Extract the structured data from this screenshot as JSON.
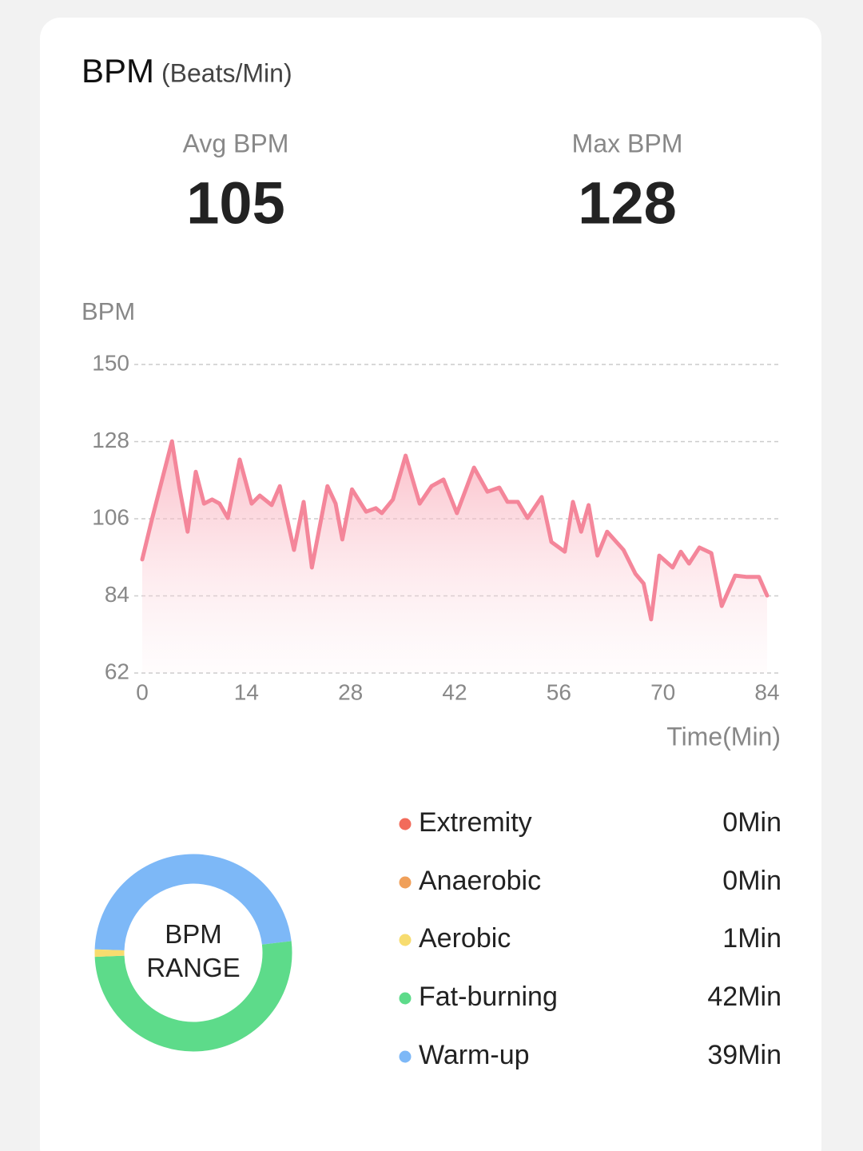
{
  "header": {
    "title": "BPM",
    "subtitle": "(Beats/Min)"
  },
  "stats": [
    {
      "label": "Avg BPM",
      "value": 105
    },
    {
      "label": "Max BPM",
      "value": 128
    }
  ],
  "chart_data": [
    {
      "type": "line",
      "y_label": "BPM",
      "x_label": "Time(Min)",
      "color": "#f4869a",
      "grid": true,
      "x": [
        0,
        1.3,
        2.4,
        4.0,
        5.0,
        6.1,
        7.2,
        8.3,
        9.4,
        10.4,
        11.5,
        13.1,
        14.7,
        15.8,
        17.4,
        18.5,
        20.4,
        21.7,
        22.8,
        24.9,
        26.0,
        26.9,
        28.2,
        30.1,
        31.4,
        32.2,
        33.7,
        35.4,
        37.3,
        38.9,
        40.5,
        42.3,
        44.6,
        46.4,
        48.0,
        49.1,
        50.5,
        51.8,
        53.7,
        55.0,
        56.8,
        57.9,
        59.0,
        60.0,
        61.2,
        62.5,
        64.7,
        66.3,
        67.4,
        68.4,
        69.5,
        71.3,
        72.4,
        73.5,
        74.9,
        76.5,
        77.9,
        79.7,
        81.3,
        82.9,
        84.0
      ],
      "values": [
        94.4,
        105.8,
        114.9,
        128.1,
        114.9,
        102.3,
        119.4,
        110.3,
        111.5,
        110.3,
        106.2,
        122.9,
        110.3,
        112.6,
        109.9,
        115.3,
        97.1,
        110.8,
        92.1,
        115.3,
        110.3,
        100.1,
        114.4,
        108.0,
        109.0,
        107.6,
        111.5,
        124.0,
        110.3,
        115.3,
        117.2,
        107.6,
        120.6,
        113.7,
        114.9,
        110.8,
        110.8,
        106.2,
        112.2,
        99.4,
        96.6,
        110.8,
        102.3,
        109.9,
        95.5,
        102.3,
        97.1,
        90.3,
        87.5,
        77.3,
        95.5,
        92.1,
        96.6,
        93.2,
        97.8,
        96.2,
        81.1,
        89.8,
        89.4,
        89.4,
        84.1
      ],
      "xlim": [
        0,
        84
      ],
      "xticks": [
        0,
        14,
        28,
        42,
        56,
        70,
        84
      ],
      "ylim": [
        62,
        150
      ],
      "yticks": [
        62,
        84,
        106,
        128,
        150
      ]
    },
    {
      "type": "donut",
      "center_label": "BPM RANGE",
      "categories": [
        "Extremity",
        "Anaerobic",
        "Aerobic",
        "Fat-burning",
        "Warm-up"
      ],
      "values": [
        0,
        0,
        1,
        42,
        39
      ],
      "value_labels": [
        "0Min",
        "0Min",
        "1Min",
        "42Min",
        "39Min"
      ],
      "colors": [
        "#f26b5b",
        "#f0a05a",
        "#f7dc6f",
        "#5ddb8a",
        "#7db8f7"
      ]
    }
  ]
}
